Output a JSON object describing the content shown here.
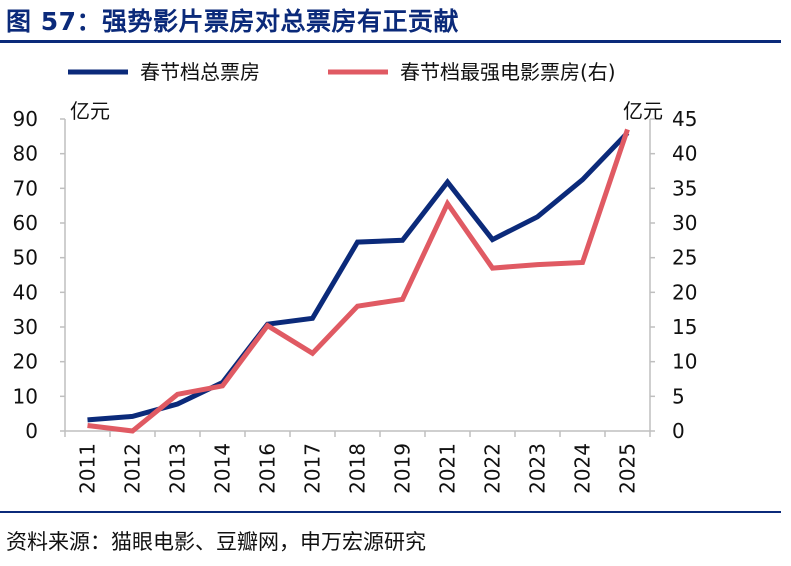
{
  "title": "图 57：强势影片票房对总票房有正贡献",
  "source": "资料来源：猫眼电影、豆瓣网，申万宏源研究",
  "colors": {
    "primary": "#0b2a7a",
    "secondary": "#e05a63",
    "axis": "#bfbfbf"
  },
  "chart_data": {
    "type": "line",
    "categories": [
      "2011",
      "2012",
      "2013",
      "2014",
      "2016",
      "2017",
      "2018",
      "2019",
      "2021",
      "2022",
      "2023",
      "2024",
      "2025"
    ],
    "left_axis": {
      "unit": "亿元",
      "min": 0,
      "max": 90,
      "step": 10,
      "ticks": [
        "0",
        "10",
        "20",
        "30",
        "40",
        "50",
        "60",
        "70",
        "80",
        "90"
      ]
    },
    "right_axis": {
      "unit": "亿元",
      "min": 0,
      "max": 45,
      "step": 5,
      "ticks": [
        "0",
        "5",
        "10",
        "15",
        "20",
        "25",
        "30",
        "35",
        "40",
        "45"
      ]
    },
    "series": [
      {
        "name": "春节档总票房",
        "axis": "left",
        "color": "#0b2a7a",
        "values": [
          3.2,
          4.2,
          7.8,
          14.0,
          30.8,
          32.5,
          54.5,
          55.0,
          71.8,
          55.2,
          61.8,
          72.5,
          86.0
        ]
      },
      {
        "name": "春节档最强电影票房(右)",
        "axis": "right",
        "color": "#e05a63",
        "values": [
          0.8,
          0.0,
          5.3,
          6.5,
          15.2,
          11.2,
          18.0,
          19.0,
          32.8,
          23.5,
          24.0,
          24.3,
          43.5
        ]
      }
    ],
    "legend_position": "top",
    "grid": false
  }
}
